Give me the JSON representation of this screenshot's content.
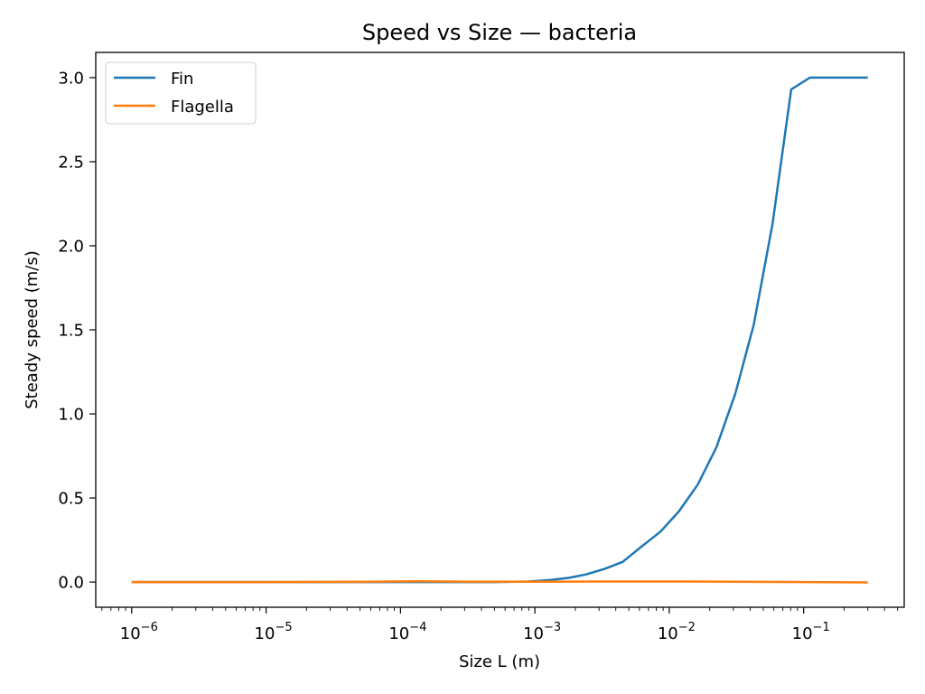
{
  "chart_data": {
    "type": "line",
    "title": "Speed vs Size — bacteria",
    "xlabel": "Size L (m)",
    "ylabel": "Steady speed (m/s)",
    "x_scale": "log",
    "xlim": [
      5.4e-07,
      0.56
    ],
    "ylim": [
      -0.15,
      3.15
    ],
    "grid": false,
    "legend_position": "top-left",
    "x_ticks": [
      {
        "value": 1e-06,
        "base": "10",
        "exp": "−6"
      },
      {
        "value": 1e-05,
        "base": "10",
        "exp": "−5"
      },
      {
        "value": 0.0001,
        "base": "10",
        "exp": "−4"
      },
      {
        "value": 0.001,
        "base": "10",
        "exp": "−3"
      },
      {
        "value": 0.01,
        "base": "10",
        "exp": "−2"
      },
      {
        "value": 0.1,
        "base": "10",
        "exp": "−1"
      }
    ],
    "y_ticks": [
      {
        "value": 0.0,
        "label": "0.0"
      },
      {
        "value": 0.5,
        "label": "0.5"
      },
      {
        "value": 1.0,
        "label": "1.0"
      },
      {
        "value": 1.5,
        "label": "1.5"
      },
      {
        "value": 2.0,
        "label": "2.0"
      },
      {
        "value": 2.5,
        "label": "2.5"
      },
      {
        "value": 3.0,
        "label": "3.0"
      }
    ],
    "series": [
      {
        "name": "Fin",
        "color": "#1f77b4",
        "x": [
          1e-06,
          1e-05,
          0.0001,
          0.0005,
          0.0009,
          0.0013,
          0.0018,
          0.0024,
          0.0033,
          0.0045,
          0.0062,
          0.0086,
          0.0118,
          0.0163,
          0.0224,
          0.031,
          0.0425,
          0.0586,
          0.0808,
          0.1113,
          0.1534,
          0.2114,
          0.3
        ],
        "y": [
          0.0,
          0.0,
          0.0,
          0.0,
          0.003,
          0.012,
          0.025,
          0.045,
          0.078,
          0.12,
          0.21,
          0.3,
          0.42,
          0.58,
          0.8,
          1.12,
          1.53,
          2.13,
          2.93,
          3.0,
          3.0,
          3.0,
          3.0
        ]
      },
      {
        "name": "Flagella",
        "color": "#ff7f0e",
        "x": [
          1e-06,
          1e-05,
          5e-05,
          0.00013,
          0.0003,
          0.001,
          0.003,
          0.01,
          0.03,
          0.1,
          0.3
        ],
        "y": [
          0.0,
          0.0,
          0.001,
          0.005,
          0.002,
          0.002,
          0.003,
          0.003,
          0.002,
          0.0,
          -0.002
        ]
      }
    ]
  }
}
